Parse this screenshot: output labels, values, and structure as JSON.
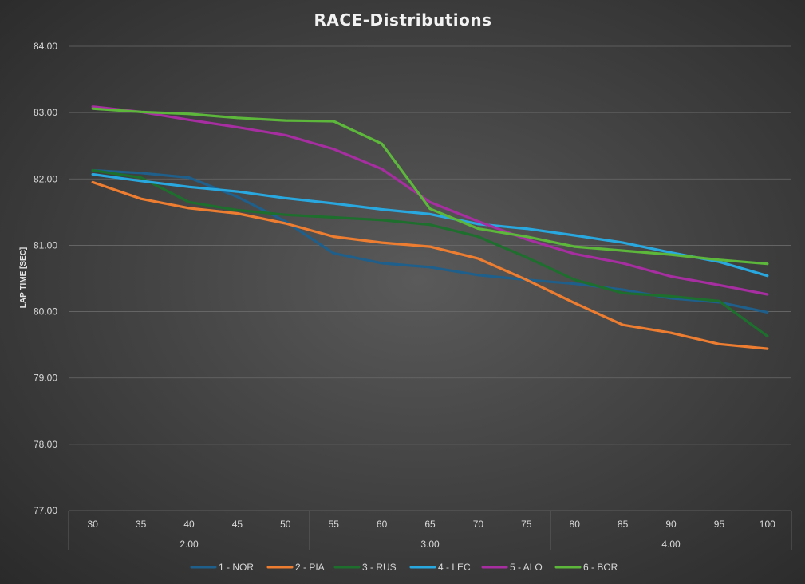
{
  "chart_data": {
    "type": "line",
    "title": "RACE-Distributions",
    "xlabel": "",
    "ylabel": "LAP TIME [SEC]",
    "ylim": [
      77.0,
      84.0
    ],
    "yticks": [
      "77.00",
      "78.00",
      "79.00",
      "80.00",
      "81.00",
      "82.00",
      "83.00",
      "84.00"
    ],
    "grid": true,
    "legend_position": "bottom",
    "categories": [
      "30",
      "35",
      "40",
      "45",
      "50",
      "55",
      "60",
      "65",
      "70",
      "75",
      "80",
      "85",
      "90",
      "95",
      "100"
    ],
    "category_groups": [
      {
        "label": "2.00",
        "start": 0,
        "end": 4
      },
      {
        "label": "3.00",
        "start": 5,
        "end": 9
      },
      {
        "label": "4.00",
        "start": 10,
        "end": 14
      }
    ],
    "series": [
      {
        "name": "1 - NOR",
        "color": "#1f5f8b",
        "values": [
          82.13,
          82.09,
          82.02,
          81.73,
          81.36,
          80.88,
          80.73,
          80.67,
          80.55,
          80.48,
          80.42,
          80.33,
          80.2,
          80.14,
          79.99
        ]
      },
      {
        "name": "2 - PIA",
        "color": "#ed7d31",
        "values": [
          81.95,
          81.7,
          81.56,
          81.48,
          81.33,
          81.13,
          81.04,
          80.98,
          80.8,
          80.48,
          80.13,
          79.8,
          79.68,
          79.51,
          79.44
        ]
      },
      {
        "name": "3 - RUS",
        "color": "#1e6e2e",
        "values": [
          82.13,
          82.02,
          81.65,
          81.53,
          81.46,
          81.42,
          81.38,
          81.31,
          81.13,
          80.82,
          80.48,
          80.28,
          80.23,
          80.16,
          79.63
        ]
      },
      {
        "name": "4 - LEC",
        "color": "#29a8e0",
        "values": [
          82.07,
          81.97,
          81.88,
          81.81,
          81.71,
          81.63,
          81.54,
          81.47,
          81.32,
          81.25,
          81.15,
          81.04,
          80.89,
          80.75,
          80.54
        ]
      },
      {
        "name": "5 - ALO",
        "color": "#a62ea0",
        "values": [
          83.09,
          83.01,
          82.89,
          82.78,
          82.66,
          82.45,
          82.15,
          81.65,
          81.36,
          81.09,
          80.87,
          80.73,
          80.53,
          80.4,
          80.26
        ]
      },
      {
        "name": "6 - BOR",
        "color": "#5cb73b",
        "values": [
          83.06,
          83.01,
          82.98,
          82.92,
          82.88,
          82.87,
          82.53,
          81.55,
          81.25,
          81.13,
          80.98,
          80.92,
          80.86,
          80.78,
          80.72
        ]
      }
    ]
  }
}
